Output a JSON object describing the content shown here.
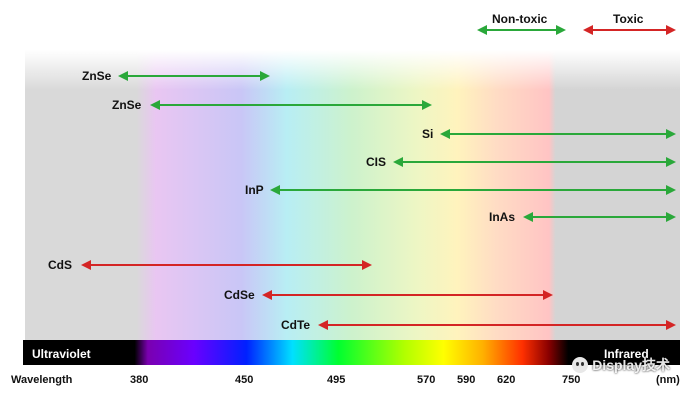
{
  "legend": {
    "nontoxic_label": "Non-toxic",
    "toxic_label": "Toxic",
    "nontoxic_color": "#2aa83a",
    "toxic_color": "#d42525"
  },
  "band": {
    "left_label": "Ultraviolet",
    "right_label": "Infrared"
  },
  "axis": {
    "title": "Wavelength",
    "unit": "(nm)",
    "ticks": [
      {
        "value": 380,
        "label": "380"
      },
      {
        "value": 450,
        "label": "450"
      },
      {
        "value": 495,
        "label": "495"
      },
      {
        "value": 570,
        "label": "570"
      },
      {
        "value": 590,
        "label": "590"
      },
      {
        "value": 620,
        "label": "620"
      },
      {
        "value": 750,
        "label": "750"
      }
    ]
  },
  "materials": [
    {
      "name": "ZnSe",
      "toxic": false
    },
    {
      "name": "ZnSe",
      "toxic": false
    },
    {
      "name": "Si",
      "toxic": false
    },
    {
      "name": "CIS",
      "toxic": false
    },
    {
      "name": "InP",
      "toxic": false
    },
    {
      "name": "InAs",
      "toxic": false
    },
    {
      "name": "CdS",
      "toxic": true
    },
    {
      "name": "CdSe",
      "toxic": true
    },
    {
      "name": "CdTe",
      "toxic": true
    }
  ],
  "watermark": {
    "text": "Display技术",
    "icon": "smiley-logo-icon"
  }
}
